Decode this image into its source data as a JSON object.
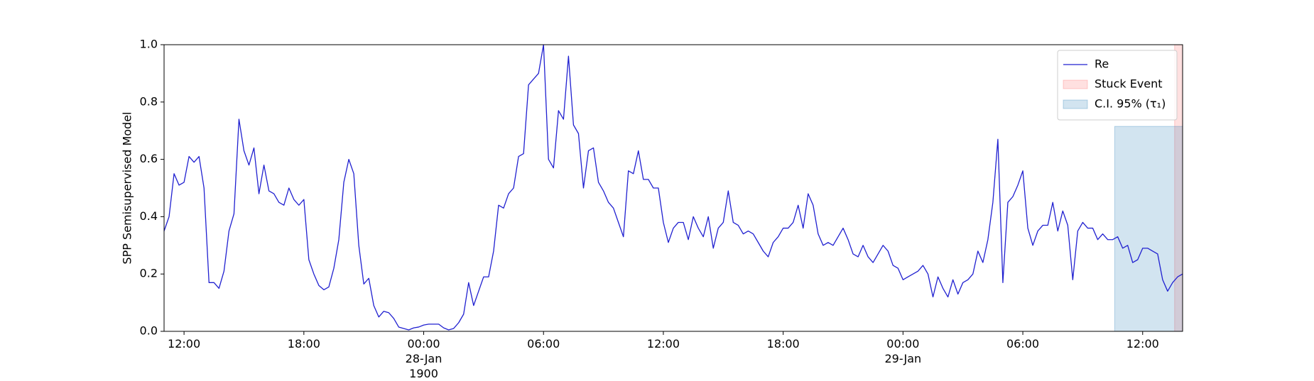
{
  "chart_data": {
    "type": "line",
    "y_label": "SPP Semisupervised Model",
    "x": [
      11,
      11.25,
      11.5,
      11.75,
      12,
      12.25,
      12.5,
      12.75,
      13,
      13.25,
      13.5,
      13.75,
      14,
      14.25,
      14.5,
      14.75,
      15,
      15.25,
      15.5,
      15.75,
      16,
      16.25,
      16.5,
      16.75,
      17,
      17.25,
      17.5,
      17.75,
      18,
      18.25,
      18.5,
      18.75,
      19,
      19.25,
      19.5,
      19.75,
      20,
      20.25,
      20.5,
      20.75,
      21,
      21.25,
      21.5,
      21.75,
      22,
      22.25,
      22.5,
      22.75,
      23,
      23.25,
      23.5,
      23.75,
      24,
      24.25,
      24.5,
      24.75,
      25,
      25.25,
      25.5,
      25.75,
      26,
      26.25,
      26.5,
      26.75,
      27,
      27.25,
      27.5,
      27.75,
      28,
      28.25,
      28.5,
      28.75,
      29,
      29.25,
      29.5,
      29.75,
      30,
      30.25,
      30.5,
      30.75,
      31,
      31.25,
      31.5,
      31.75,
      32,
      32.25,
      32.5,
      32.75,
      33,
      33.25,
      33.5,
      33.75,
      34,
      34.25,
      34.5,
      34.75,
      35,
      35.25,
      35.5,
      35.75,
      36,
      36.25,
      36.5,
      36.75,
      37,
      37.25,
      37.5,
      37.75,
      38,
      38.25,
      38.5,
      38.75,
      39,
      39.25,
      39.5,
      39.75,
      40,
      40.25,
      40.5,
      40.75,
      41,
      41.25,
      41.5,
      41.75,
      42,
      42.25,
      42.5,
      42.75,
      43,
      43.25,
      43.5,
      43.75,
      44,
      44.25,
      44.5,
      44.75,
      45,
      45.25,
      45.5,
      45.75,
      46,
      46.25,
      46.5,
      46.75,
      47,
      47.25,
      47.5,
      47.75,
      48,
      48.25,
      48.5,
      48.75,
      49,
      49.25,
      49.5,
      49.75,
      50,
      50.25,
      50.5,
      50.75,
      51,
      51.25,
      51.5,
      51.75,
      52,
      52.25,
      52.5,
      52.75,
      53,
      53.25,
      53.5,
      53.75,
      54,
      54.25,
      54.5,
      54.75,
      55,
      55.25,
      55.5,
      55.75,
      56,
      56.25,
      56.5,
      56.75,
      57,
      57.25,
      57.5,
      57.75,
      58,
      58.25,
      58.5,
      58.75,
      59,
      59.25,
      59.5,
      59.75,
      60,
      60.25,
      60.5,
      60.75,
      61,
      61.25,
      61.5,
      61.75,
      62
    ],
    "series": [
      {
        "name": "Re",
        "color": "#2020d0",
        "values": [
          0.35,
          0.4,
          0.55,
          0.51,
          0.52,
          0.61,
          0.59,
          0.61,
          0.5,
          0.17,
          0.17,
          0.15,
          0.21,
          0.35,
          0.41,
          0.74,
          0.63,
          0.58,
          0.64,
          0.48,
          0.58,
          0.49,
          0.48,
          0.45,
          0.44,
          0.5,
          0.46,
          0.44,
          0.46,
          0.25,
          0.2,
          0.16,
          0.145,
          0.155,
          0.22,
          0.32,
          0.52,
          0.6,
          0.55,
          0.3,
          0.165,
          0.185,
          0.09,
          0.05,
          0.07,
          0.065,
          0.045,
          0.015,
          0.01,
          0.005,
          0.012,
          0.015,
          0.022,
          0.025,
          0.025,
          0.025,
          0.012,
          0.005,
          0.01,
          0.03,
          0.06,
          0.17,
          0.09,
          0.14,
          0.19,
          0.19,
          0.28,
          0.44,
          0.43,
          0.48,
          0.5,
          0.61,
          0.62,
          0.86,
          0.88,
          0.9,
          1.0,
          0.6,
          0.57,
          0.77,
          0.74,
          0.96,
          0.72,
          0.69,
          0.5,
          0.63,
          0.64,
          0.52,
          0.49,
          0.45,
          0.43,
          0.38,
          0.33,
          0.56,
          0.55,
          0.63,
          0.53,
          0.53,
          0.5,
          0.5,
          0.38,
          0.31,
          0.36,
          0.38,
          0.38,
          0.32,
          0.4,
          0.36,
          0.33,
          0.4,
          0.29,
          0.36,
          0.38,
          0.49,
          0.38,
          0.37,
          0.34,
          0.35,
          0.34,
          0.31,
          0.28,
          0.26,
          0.31,
          0.33,
          0.36,
          0.36,
          0.38,
          0.44,
          0.36,
          0.48,
          0.44,
          0.34,
          0.3,
          0.31,
          0.3,
          0.33,
          0.36,
          0.32,
          0.27,
          0.26,
          0.3,
          0.26,
          0.24,
          0.27,
          0.3,
          0.28,
          0.23,
          0.22,
          0.18,
          0.19,
          0.2,
          0.21,
          0.23,
          0.2,
          0.12,
          0.19,
          0.15,
          0.12,
          0.18,
          0.13,
          0.17,
          0.18,
          0.2,
          0.28,
          0.24,
          0.32,
          0.45,
          0.67,
          0.17,
          0.45,
          0.47,
          0.51,
          0.56,
          0.36,
          0.3,
          0.35,
          0.37,
          0.37,
          0.45,
          0.35,
          0.42,
          0.37,
          0.18,
          0.35,
          0.38,
          0.36,
          0.36,
          0.32,
          0.34,
          0.32,
          0.32,
          0.33,
          0.29,
          0.3,
          0.24,
          0.25,
          0.29,
          0.29,
          0.28,
          0.27,
          0.18,
          0.14,
          0.17,
          0.19,
          0.2
        ]
      }
    ],
    "regions": [
      {
        "name": "Stuck Event",
        "color": "#ff0000",
        "opacity": 0.12,
        "x": [
          61.6,
          62
        ]
      },
      {
        "name": "C.I. 95% (τ₁)",
        "color": "#1f77b4",
        "opacity": 0.2,
        "x": [
          58.6,
          62
        ],
        "y": [
          0,
          0.715
        ]
      }
    ],
    "xlim": [
      11,
      62
    ],
    "ylim": [
      0,
      1
    ],
    "xticks": [
      {
        "value": 12,
        "label": "12:00"
      },
      {
        "value": 18,
        "label": "18:00"
      },
      {
        "value": 24,
        "label": "00:00\n28-Jan\n1900"
      },
      {
        "value": 30,
        "label": "06:00"
      },
      {
        "value": 36,
        "label": "12:00"
      },
      {
        "value": 42,
        "label": "18:00"
      },
      {
        "value": 48,
        "label": "00:00\n29-Jan"
      },
      {
        "value": 54,
        "label": "06:00"
      },
      {
        "value": 60,
        "label": "12:00"
      }
    ],
    "yticks": [
      {
        "value": 0,
        "label": "0.0"
      },
      0.2,
      0.4,
      0.6,
      0.8,
      {
        "value": 1,
        "label": "1.0"
      }
    ],
    "grid": false,
    "legend": "upper right"
  }
}
